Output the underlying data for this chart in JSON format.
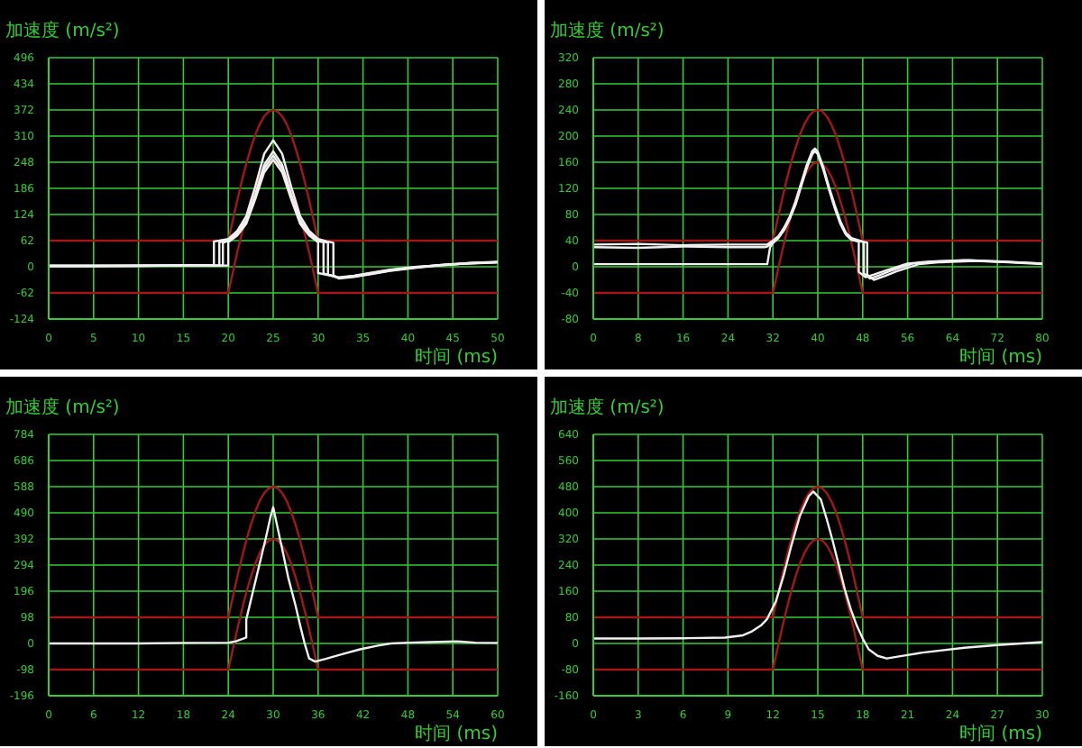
{
  "chart_data": [
    {
      "type": "line",
      "xlabel": "时间 (ms)",
      "ylabel": "加速度 (m/s²)",
      "xlim": [
        0,
        50
      ],
      "xticks": [
        0,
        5,
        10,
        15,
        20,
        25,
        30,
        35,
        40,
        45,
        50
      ],
      "ylim": [
        -124,
        496
      ],
      "yticks": [
        -124,
        -62,
        0,
        62,
        124,
        186,
        248,
        310,
        372,
        434,
        496
      ],
      "grid": true,
      "series": [
        {
          "color": "#a01818",
          "x": [
            0,
            20,
            20.5,
            21,
            21.5,
            22,
            22.5,
            23,
            23.5,
            24,
            24.5,
            25,
            25.5,
            26,
            26.5,
            27,
            27.5,
            28,
            28.5,
            29,
            29.5,
            30,
            50
          ],
          "values": [
            62,
            62,
            110,
            158,
            203,
            244,
            281,
            313,
            338,
            357,
            368,
            372,
            368,
            357,
            338,
            313,
            281,
            244,
            203,
            158,
            110,
            62,
            62
          ]
        },
        {
          "color": "#a01818",
          "x": [
            0,
            20,
            20.5,
            21,
            21.5,
            22,
            22.5,
            23,
            23.5,
            24,
            24.5,
            25,
            25.5,
            26,
            26.5,
            27,
            27.5,
            28,
            28.5,
            29,
            29.5,
            30,
            50
          ],
          "values": [
            -62,
            -62,
            -14,
            34,
            79,
            120,
            157,
            189,
            214,
            233,
            244,
            248,
            244,
            233,
            214,
            189,
            157,
            120,
            79,
            34,
            -14,
            -62,
            -62
          ]
        },
        {
          "color": "#f0f0f0",
          "x": [
            0,
            5,
            10,
            15,
            18.4,
            18.4,
            19,
            20,
            21,
            22,
            23,
            24,
            25,
            26,
            27,
            28,
            29,
            30,
            31,
            31.7,
            31.7,
            32.3,
            34,
            36,
            38,
            41,
            44,
            47,
            50
          ],
          "values": [
            3,
            3,
            3,
            4,
            4,
            60,
            62,
            66,
            85,
            120,
            190,
            268,
            300,
            268,
            190,
            120,
            85,
            66,
            60,
            57,
            -20,
            -28,
            -24,
            -17,
            -10,
            -2,
            4,
            9,
            12
          ]
        },
        {
          "color": "#f0f0f0",
          "x": [
            0,
            5,
            10,
            15,
            19,
            19,
            20,
            21,
            22,
            23,
            24,
            25,
            26,
            27,
            28,
            29,
            30,
            31.1,
            31.1,
            32.3,
            34,
            36,
            38,
            41,
            44,
            47,
            50
          ],
          "values": [
            2,
            2,
            3,
            3,
            3,
            58,
            63,
            80,
            110,
            172,
            242,
            274,
            242,
            172,
            110,
            80,
            63,
            57,
            -18,
            -27,
            -23,
            -16,
            -9,
            -1,
            5,
            9,
            11
          ]
        },
        {
          "color": "#f0f0f0",
          "x": [
            0,
            5,
            10,
            15,
            19.4,
            19.4,
            20,
            21,
            22,
            23,
            24,
            25,
            26,
            27,
            28,
            29,
            30,
            30.6,
            30.6,
            32.3,
            34,
            36,
            38,
            41,
            44,
            47,
            50
          ],
          "values": [
            2,
            2,
            2,
            3,
            3,
            57,
            61,
            77,
            106,
            166,
            233,
            264,
            233,
            166,
            106,
            77,
            61,
            58,
            -16,
            -26,
            -22,
            -15,
            -8,
            -1,
            5,
            8,
            11
          ]
        },
        {
          "color": "#f0f0f0",
          "x": [
            0,
            5,
            10,
            15,
            20,
            20,
            21,
            22,
            23,
            24,
            25,
            26,
            27,
            28,
            29,
            30,
            30,
            32.3,
            34,
            36,
            38,
            41,
            44,
            47,
            50
          ],
          "values": [
            1,
            1,
            2,
            3,
            3,
            58,
            74,
            102,
            160,
            224,
            254,
            224,
            160,
            102,
            74,
            58,
            -15,
            -25,
            -21,
            -14,
            -7,
            0,
            4,
            8,
            10
          ]
        }
      ]
    },
    {
      "type": "line",
      "xlabel": "时间 (ms)",
      "ylabel": "加速度 (m/s²)",
      "xlim": [
        0,
        80
      ],
      "xticks": [
        0,
        8,
        16,
        24,
        32,
        40,
        48,
        56,
        64,
        72,
        80
      ],
      "ylim": [
        -80,
        320
      ],
      "yticks": [
        -80,
        -40,
        0,
        40,
        80,
        120,
        160,
        200,
        240,
        280,
        320
      ],
      "grid": true,
      "series": [
        {
          "color": "#a01818",
          "x": [
            0,
            32,
            32.8,
            33.6,
            34.4,
            35.2,
            36,
            36.8,
            37.6,
            38.4,
            39.2,
            40,
            40.8,
            41.6,
            42.4,
            43.2,
            44,
            44.8,
            45.6,
            46.4,
            47.2,
            48,
            80
          ],
          "values": [
            40,
            40,
            71,
            102,
            131,
            158,
            181,
            202,
            218,
            230,
            238,
            240,
            238,
            230,
            218,
            202,
            181,
            158,
            131,
            102,
            71,
            40,
            40
          ]
        },
        {
          "color": "#a01818",
          "x": [
            0,
            32,
            32.8,
            33.6,
            34.4,
            35.2,
            36,
            36.8,
            37.6,
            38.4,
            39.2,
            40,
            40.8,
            41.6,
            42.4,
            43.2,
            44,
            44.8,
            45.6,
            46.4,
            47.2,
            48,
            80
          ],
          "values": [
            -40,
            -40,
            -9,
            22,
            51,
            78,
            101,
            122,
            138,
            150,
            158,
            160,
            158,
            150,
            138,
            122,
            101,
            78,
            51,
            22,
            -9,
            -40,
            -40
          ]
        },
        {
          "color": "#f0f0f0",
          "x": [
            0,
            8,
            16,
            24,
            30.5,
            31,
            32,
            33,
            34,
            35,
            36,
            37,
            38,
            39,
            39.5,
            40,
            41,
            42,
            43,
            44,
            45,
            46,
            47.3,
            47.3,
            48.5,
            50,
            52,
            56,
            60,
            66,
            72,
            80
          ],
          "values": [
            30,
            29,
            31,
            30,
            30,
            31,
            38,
            45,
            58,
            75,
            96,
            124,
            152,
            174,
            179,
            174,
            150,
            120,
            92,
            68,
            50,
            42,
            38,
            -8,
            -16,
            -12,
            -6,
            5,
            8,
            10,
            8,
            5
          ]
        },
        {
          "color": "#f0f0f0",
          "x": [
            0,
            8,
            16,
            24,
            30.5,
            31,
            32,
            33,
            34,
            35,
            36,
            37,
            38,
            39,
            39.5,
            40,
            41,
            42,
            43,
            44,
            45,
            46,
            48.2,
            48.2,
            49.3,
            51,
            53,
            57,
            61,
            67,
            73,
            80
          ],
          "values": [
            34,
            35,
            33,
            34,
            34,
            34,
            40,
            47,
            60,
            77,
            99,
            127,
            155,
            177,
            181,
            176,
            152,
            122,
            95,
            70,
            52,
            44,
            38,
            -10,
            -18,
            -13,
            -6,
            5,
            8,
            10,
            8,
            5
          ]
        },
        {
          "color": "#f0f0f0",
          "x": [
            0,
            8,
            16,
            24,
            31,
            31.5,
            32,
            33,
            34,
            35,
            36,
            37,
            38,
            39,
            39.5,
            40,
            41,
            42,
            43,
            44,
            45,
            46,
            48.8,
            48.8,
            50,
            52,
            54,
            58,
            62,
            68,
            74,
            80
          ],
          "values": [
            4,
            4,
            4,
            4,
            4,
            30,
            36,
            44,
            56,
            73,
            94,
            122,
            150,
            172,
            177,
            172,
            148,
            118,
            90,
            66,
            49,
            41,
            37,
            -12,
            -20,
            -14,
            -7,
            4,
            7,
            9,
            7,
            4
          ]
        }
      ]
    },
    {
      "type": "line",
      "xlabel": "时间 (ms)",
      "ylabel": "加速度 (m/s²)",
      "xlim": [
        0,
        60
      ],
      "xticks": [
        0,
        6,
        12,
        18,
        24,
        30,
        36,
        42,
        48,
        54,
        60
      ],
      "ylim": [
        -196,
        784
      ],
      "yticks": [
        -196,
        -98,
        0,
        98,
        196,
        294,
        392,
        490,
        588,
        686,
        784
      ],
      "grid": true,
      "series": [
        {
          "color": "#a01818",
          "x": [
            0,
            24,
            24.6,
            25.2,
            25.8,
            26.4,
            27,
            27.6,
            28.2,
            28.8,
            29.4,
            30,
            30.6,
            31.2,
            31.8,
            32.4,
            33,
            33.6,
            34.2,
            34.8,
            35.4,
            36,
            60
          ],
          "values": [
            98,
            98,
            174,
            249,
            320,
            386,
            444,
            494,
            535,
            564,
            582,
            588,
            582,
            564,
            535,
            494,
            444,
            386,
            320,
            249,
            174,
            98,
            98
          ]
        },
        {
          "color": "#a01818",
          "x": [
            0,
            24,
            24.6,
            25.2,
            25.8,
            26.4,
            27,
            27.6,
            28.2,
            28.8,
            29.4,
            30,
            30.6,
            31.2,
            31.8,
            32.4,
            33,
            33.6,
            34.2,
            34.8,
            35.4,
            36,
            60
          ],
          "values": [
            -98,
            -98,
            -22,
            53,
            124,
            190,
            248,
            298,
            339,
            368,
            386,
            392,
            386,
            368,
            339,
            298,
            248,
            190,
            124,
            53,
            -22,
            -98,
            -98
          ]
        },
        {
          "color": "#f0f0f0",
          "x": [
            0,
            6,
            12,
            18,
            24,
            25,
            26,
            26.4,
            26.4,
            27,
            28,
            29,
            29.6,
            30,
            30.5,
            31,
            32,
            33,
            33.6,
            34.2,
            34.8,
            35.6,
            37,
            39,
            41.6,
            44,
            45.7,
            48,
            51,
            54.5,
            57,
            60
          ],
          "values": [
            0,
            0,
            0,
            2,
            3,
            8,
            18,
            22,
            90,
            160,
            277,
            394,
            470,
            511,
            445,
            380,
            248,
            140,
            68,
            0,
            -56,
            -68,
            -58,
            -42,
            -22,
            -8,
            0,
            3,
            5,
            8,
            3,
            2
          ]
        }
      ]
    },
    {
      "type": "line",
      "xlabel": "时间 (ms)",
      "ylabel": "加速度 (m/s²)",
      "xlim": [
        0,
        30
      ],
      "xticks": [
        0,
        3,
        6,
        9,
        12,
        15,
        18,
        21,
        24,
        27,
        30
      ],
      "ylim": [
        -160,
        640
      ],
      "yticks": [
        -160,
        -80,
        0,
        80,
        160,
        240,
        320,
        400,
        480,
        560,
        640
      ],
      "grid": true,
      "series": [
        {
          "color": "#a01818",
          "x": [
            0,
            12,
            12.3,
            12.6,
            12.9,
            13.2,
            13.5,
            13.8,
            14.1,
            14.4,
            14.7,
            15,
            15.3,
            15.6,
            15.9,
            16.2,
            16.5,
            16.8,
            17.1,
            17.4,
            17.7,
            18,
            30
          ],
          "values": [
            80,
            80,
            142,
            204,
            262,
            315,
            363,
            404,
            436,
            460,
            475,
            480,
            475,
            460,
            436,
            404,
            363,
            315,
            262,
            204,
            142,
            80,
            80
          ]
        },
        {
          "color": "#a01818",
          "x": [
            0,
            12,
            12.3,
            12.6,
            12.9,
            13.2,
            13.5,
            13.8,
            14.1,
            14.4,
            14.7,
            15,
            15.3,
            15.6,
            15.9,
            16.2,
            16.5,
            16.8,
            17.1,
            17.4,
            17.7,
            18,
            30
          ],
          "values": [
            -80,
            -80,
            -18,
            44,
            102,
            155,
            203,
            244,
            276,
            300,
            315,
            320,
            315,
            300,
            276,
            244,
            203,
            155,
            102,
            44,
            -18,
            -80,
            -80
          ]
        },
        {
          "color": "#f0f0f0",
          "x": [
            0,
            3,
            6,
            8.8,
            10,
            10.6,
            11.2,
            11.6,
            12.2,
            12.7,
            13.2,
            13.8,
            14.4,
            14.7,
            15.2,
            15.6,
            16,
            16.4,
            16.8,
            17.2,
            17.6,
            18,
            18.4,
            19,
            19.6,
            20.8,
            22,
            24.8,
            27,
            30
          ],
          "values": [
            15,
            15,
            16,
            18,
            25,
            37,
            55,
            74,
            129,
            205,
            294,
            390,
            451,
            465,
            441,
            380,
            313,
            240,
            166,
            105,
            55,
            15,
            -18,
            -38,
            -46,
            -37,
            -28,
            -13,
            -5,
            4
          ]
        }
      ]
    }
  ]
}
